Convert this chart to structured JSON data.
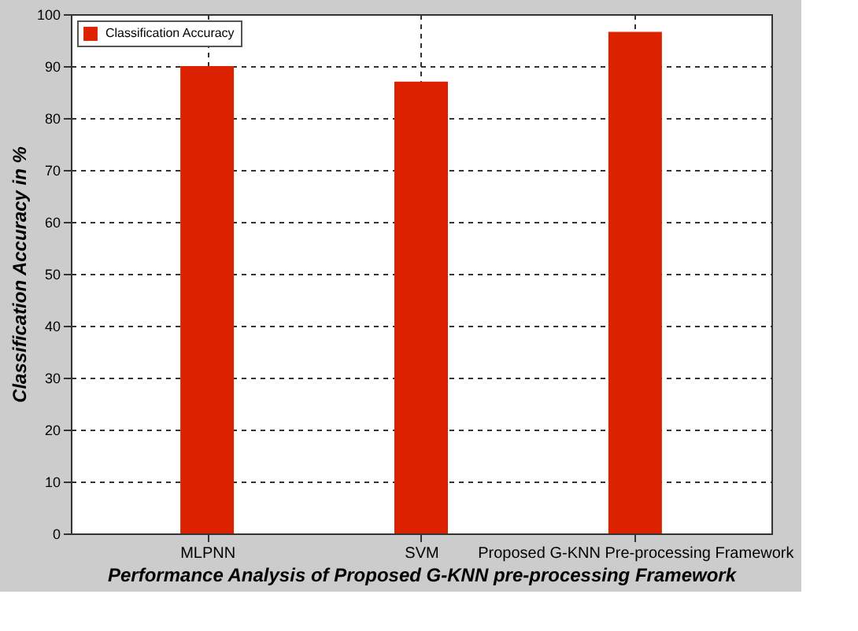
{
  "chart_data": {
    "type": "bar",
    "xlabel": "Performance Analysis of Proposed G-KNN pre-processing Framework",
    "ylabel": "Classification Accuracy in %",
    "categories": [
      "MLPNN",
      "SVM",
      "Proposed G-KNN Pre-processing Framework"
    ],
    "series": [
      {
        "name": "Classification Accuracy",
        "color": "#dd2200",
        "values": [
          90,
          87,
          96.6
        ]
      }
    ],
    "ylim": [
      0,
      100
    ],
    "yticks": [
      0,
      10,
      20,
      30,
      40,
      50,
      60,
      70,
      80,
      90,
      100
    ],
    "grid": true,
    "legend": "top left"
  }
}
